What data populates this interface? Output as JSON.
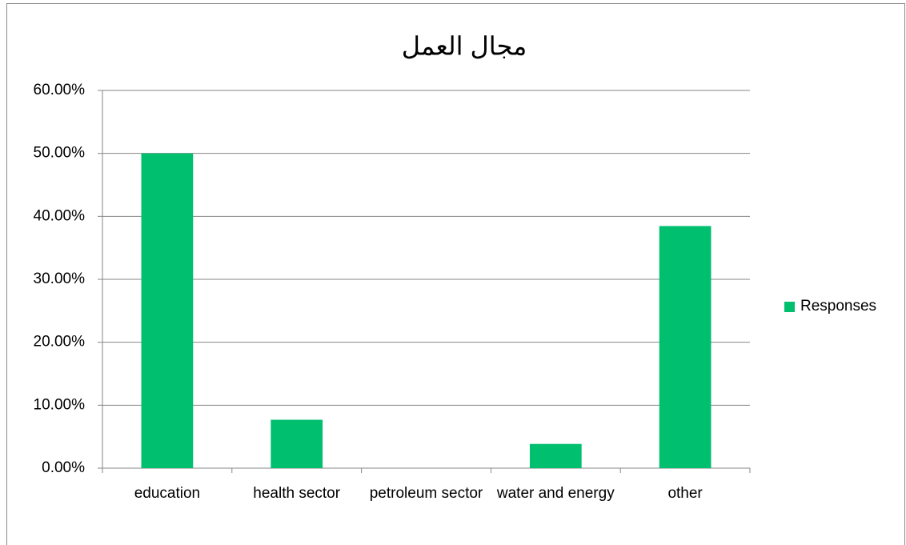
{
  "chart_data": {
    "type": "bar",
    "title": "مجال العمل",
    "categories": [
      "education",
      "health sector",
      "petroleum sector",
      "water and energy",
      "other"
    ],
    "series": [
      {
        "name": "Responses",
        "color": "#00bf6f",
        "values": [
          50,
          7.69,
          0,
          3.85,
          38.46
        ]
      }
    ],
    "ylim": [
      0,
      60
    ],
    "yticks": [
      {
        "value": 0,
        "label": "0.00%"
      },
      {
        "value": 10,
        "label": "10.00%"
      },
      {
        "value": 20,
        "label": "20.00%"
      },
      {
        "value": 30,
        "label": "30.00%"
      },
      {
        "value": 40,
        "label": "40.00%"
      },
      {
        "value": 50,
        "label": "50.00%"
      },
      {
        "value": 60,
        "label": "60.00%"
      }
    ],
    "grid": true,
    "legend": "right"
  }
}
